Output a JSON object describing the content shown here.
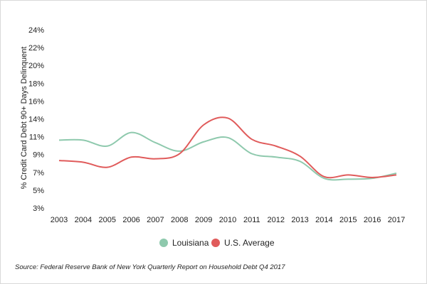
{
  "chart_data": {
    "type": "line",
    "title": "",
    "xlabel": "",
    "ylabel": "% Credit Card Debt 90+ Days Delinquent",
    "categories": [
      "2003",
      "2004",
      "2005",
      "2006",
      "2007",
      "2008",
      "2009",
      "2010",
      "2011",
      "2012",
      "2013",
      "2014",
      "2015",
      "2016",
      "2017"
    ],
    "y_tick_labels": [
      "3%",
      "5%",
      "7%",
      "9%",
      "11%",
      "14%",
      "16%",
      "18%",
      "20%",
      "22%",
      "24%"
    ],
    "ylim": [
      3,
      24
    ],
    "grid": false,
    "legend_position": "bottom",
    "series": [
      {
        "name": "Louisiana",
        "color": "#8ec9ad",
        "values": [
          11.0,
          11.0,
          10.3,
          11.9,
          10.7,
          9.7,
          10.8,
          11.3,
          9.4,
          9.0,
          8.5,
          6.5,
          6.4,
          6.5,
          7.1
        ]
      },
      {
        "name": "U.S. Average",
        "color": "#e05b5b",
        "values": [
          8.6,
          8.4,
          7.8,
          9.0,
          8.8,
          9.4,
          12.8,
          13.6,
          11.1,
          10.3,
          9.1,
          6.7,
          6.9,
          6.6,
          6.9
        ]
      }
    ]
  },
  "source": "Source: Federal Reserve Bank of New York Quarterly Report on Household Debt Q4 2017"
}
